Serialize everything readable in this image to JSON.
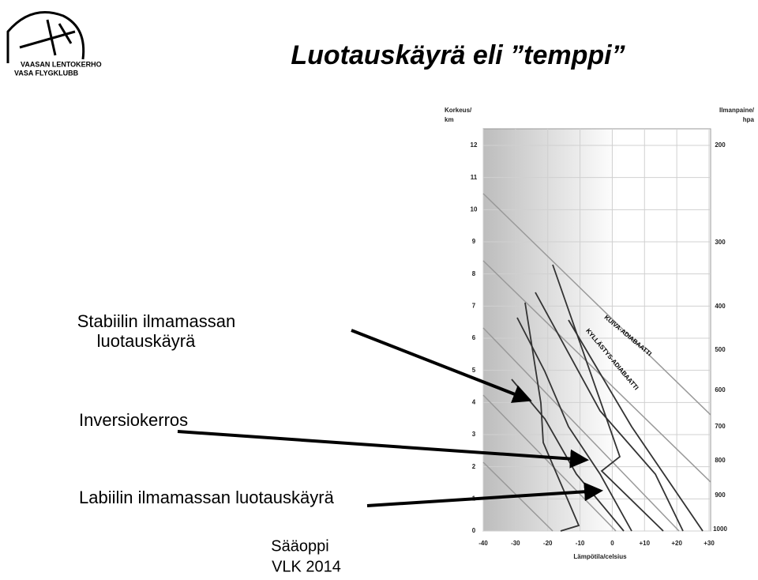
{
  "logo": {
    "line1": "VAASAN LENTOKERHO",
    "line2": "VASA FLYGKLUBB"
  },
  "title": "Luotauskäyrä eli ”temppi”",
  "labels": {
    "stable": [
      "Stabiilin ilmamassan",
      "luotauskäyrä"
    ],
    "inversion": "Inversiokerros",
    "unstable": "Labiilin ilmamassan luotauskäyrä"
  },
  "footer": [
    "Sääoppi",
    "VLK 2014"
  ],
  "diagram": {
    "left_axis_title": [
      "Korkeus/",
      "km"
    ],
    "right_axis_title": [
      "Ilmanpaine/",
      "hpa"
    ],
    "bottom_axis_title": "Lämpötila/celsius",
    "left_ticks": [
      "0",
      "1",
      "2",
      "3",
      "4",
      "5",
      "6",
      "7",
      "8",
      "9",
      "10",
      "11",
      "12"
    ],
    "right_ticks": [
      "1000",
      "900",
      "800",
      "700",
      "600",
      "500",
      "400",
      "300",
      "200"
    ],
    "bottom_ticks": [
      "-40",
      "-30",
      "-20",
      "-10",
      "0",
      "+10",
      "+20",
      "+30"
    ],
    "dry_label": "KUIVA-ADIABAATTI",
    "moist_label": "KYLLÄSTYS-ADIABAATTI"
  }
}
